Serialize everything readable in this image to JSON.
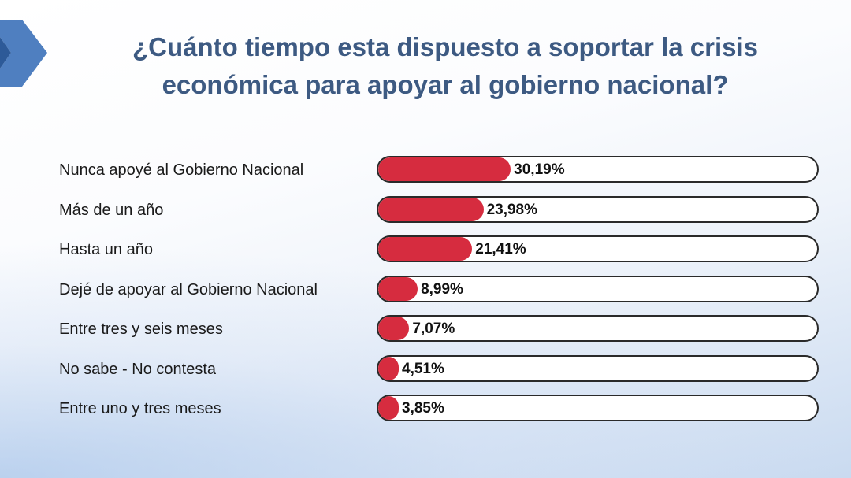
{
  "chart_data": {
    "type": "bar",
    "orientation": "horizontal",
    "title": "¿Cuánto tiempo esta dispuesto a soportar la crisis económica para apoyar al gobierno nacional?",
    "categories": [
      "Nunca apoyé al Gobierno Nacional",
      "Más de un año",
      "Hasta un año",
      "Dejé de apoyar al Gobierno Nacional",
      "Entre tres y seis meses",
      "No sabe - No contesta",
      "Entre uno y tres meses"
    ],
    "values": [
      30.19,
      23.98,
      21.41,
      8.99,
      7.07,
      4.51,
      3.85
    ],
    "value_labels": [
      "30,19%",
      "23,98%",
      "21,41%",
      "8,99%",
      "7,07%",
      "4,51%",
      "3,85%"
    ],
    "unit": "%",
    "xlim": [
      0,
      100
    ],
    "grid": false,
    "bar_color": "#d62c3f"
  },
  "colors": {
    "title": "#3d5a82",
    "bar": "#d62c3f",
    "track_border": "#2a2a2a"
  },
  "decor": {
    "logo_icon": "chevron-logo-icon"
  }
}
